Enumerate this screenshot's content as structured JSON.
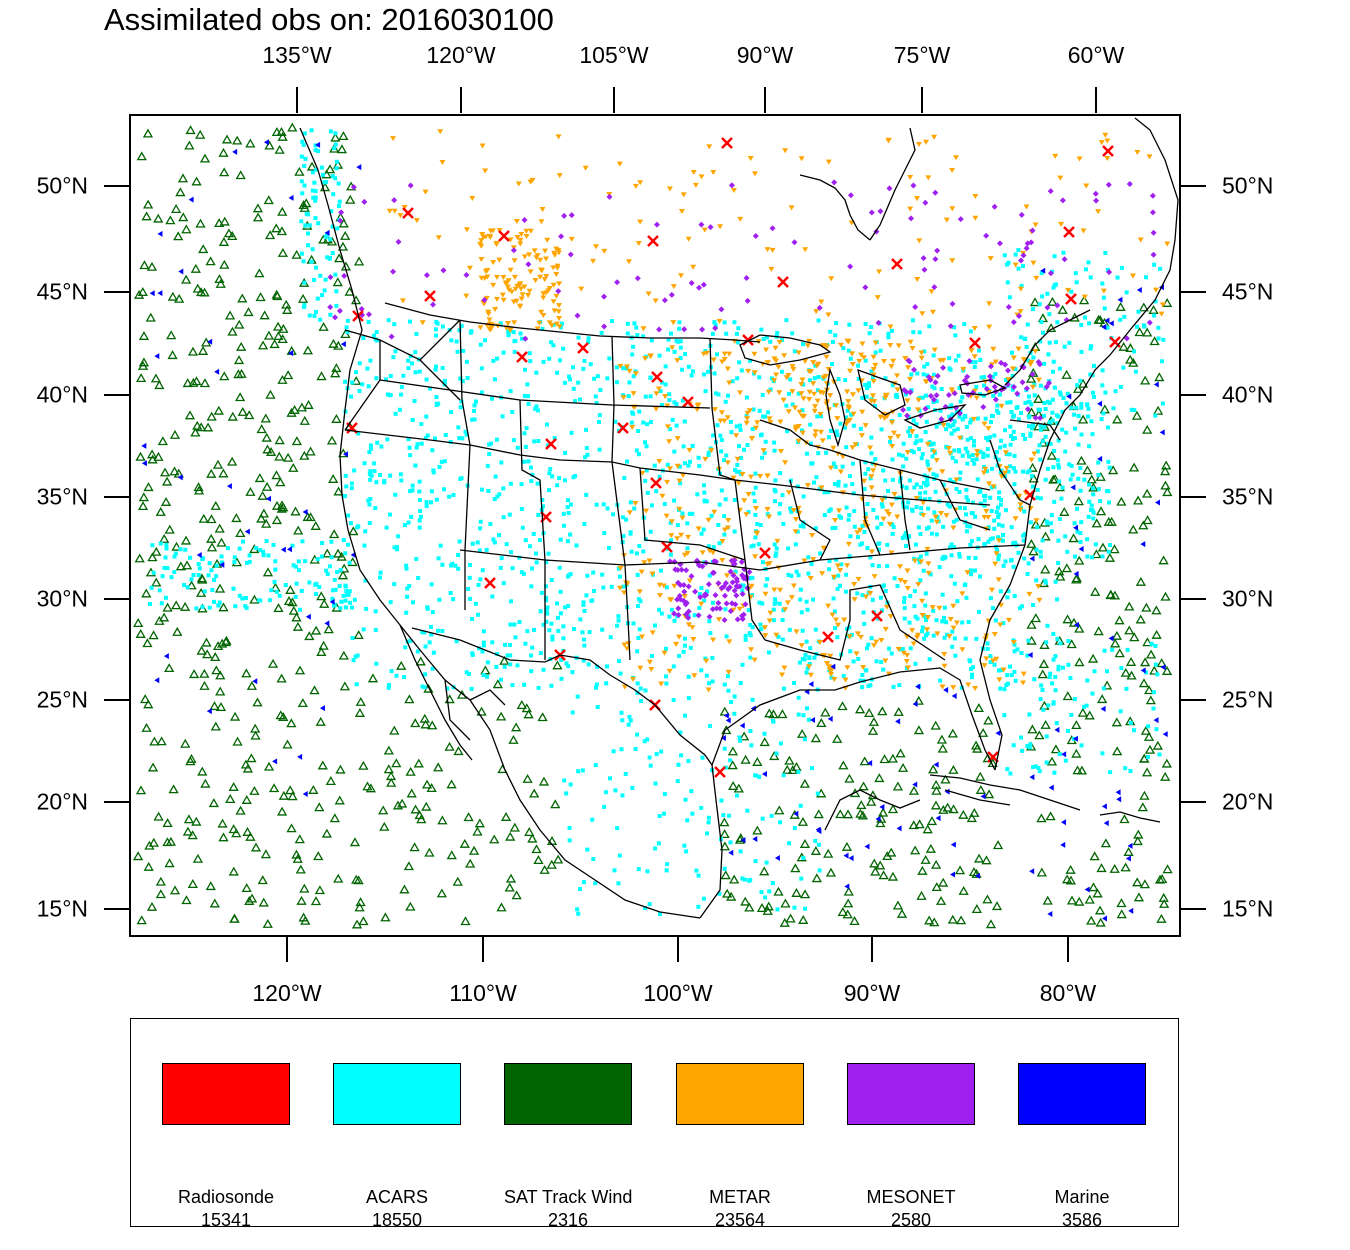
{
  "title": "Assimilated obs on: 2016030100",
  "axes": {
    "top_lon_labels": [
      "135°W",
      "120°W",
      "105°W",
      "90°W",
      "75°W",
      "60°W"
    ],
    "bottom_lon_labels": [
      "120°W",
      "110°W",
      "100°W",
      "90°W",
      "80°W"
    ],
    "lat_labels": [
      "50°N",
      "45°N",
      "40°N",
      "35°N",
      "30°N",
      "25°N",
      "20°N",
      "15°N"
    ]
  },
  "legend": [
    {
      "name": "Radiosonde",
      "count": "15341",
      "color": "#ff0000",
      "marker": "x-mark"
    },
    {
      "name": "ACARS",
      "count": "18550",
      "color": "#00ffff",
      "marker": "square"
    },
    {
      "name": "SAT Track Wind",
      "count": "2316",
      "color": "#006400",
      "marker": "hollow-triangle"
    },
    {
      "name": "METAR",
      "count": "23564",
      "color": "#ffa500",
      "marker": "down-triangle"
    },
    {
      "name": "MESONET",
      "count": "2580",
      "color": "#a020f0",
      "marker": "diamond"
    },
    {
      "name": "Marine",
      "count": "3586",
      "color": "#0000ff",
      "marker": "left-triangle"
    }
  ]
}
